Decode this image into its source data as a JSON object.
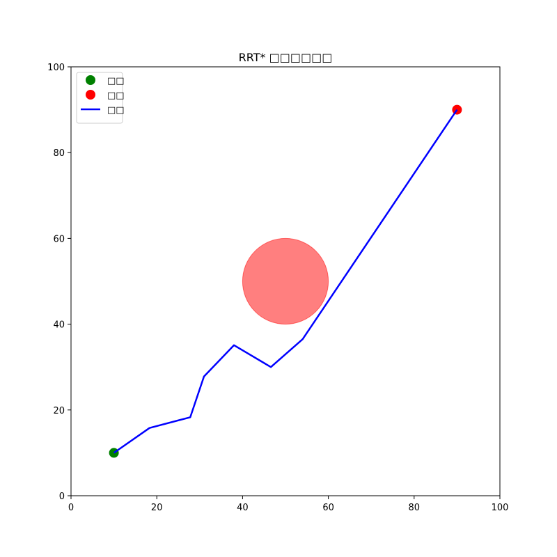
{
  "chart_data": {
    "type": "line",
    "title": "RRT* □□□□□□",
    "xlim": [
      0,
      100
    ],
    "ylim": [
      0,
      100
    ],
    "xticks": [
      0,
      20,
      40,
      60,
      80,
      100
    ],
    "yticks": [
      0,
      20,
      40,
      60,
      80,
      100
    ],
    "grid": false,
    "legend_position": "upper-left",
    "legend": [
      {
        "label": "□□",
        "kind": "marker",
        "color": "#008000"
      },
      {
        "label": "□□",
        "kind": "marker",
        "color": "#ff0000"
      },
      {
        "label": "□□",
        "kind": "line",
        "color": "#0000ff"
      }
    ],
    "start": {
      "x": 10,
      "y": 10,
      "color": "#008000"
    },
    "goal": {
      "x": 90,
      "y": 90,
      "color": "#ff0000"
    },
    "obstacle": {
      "cx": 50,
      "cy": 50,
      "r": 10,
      "color": "#ff0000",
      "alpha": 0.5
    },
    "path": {
      "color": "#0000ff",
      "points": [
        {
          "x": 10,
          "y": 10
        },
        {
          "x": 18.3,
          "y": 15.8
        },
        {
          "x": 27.8,
          "y": 18.3
        },
        {
          "x": 31,
          "y": 27.8
        },
        {
          "x": 38,
          "y": 35.1
        },
        {
          "x": 46.6,
          "y": 30
        },
        {
          "x": 54,
          "y": 36.5
        },
        {
          "x": 90,
          "y": 90
        }
      ]
    }
  }
}
